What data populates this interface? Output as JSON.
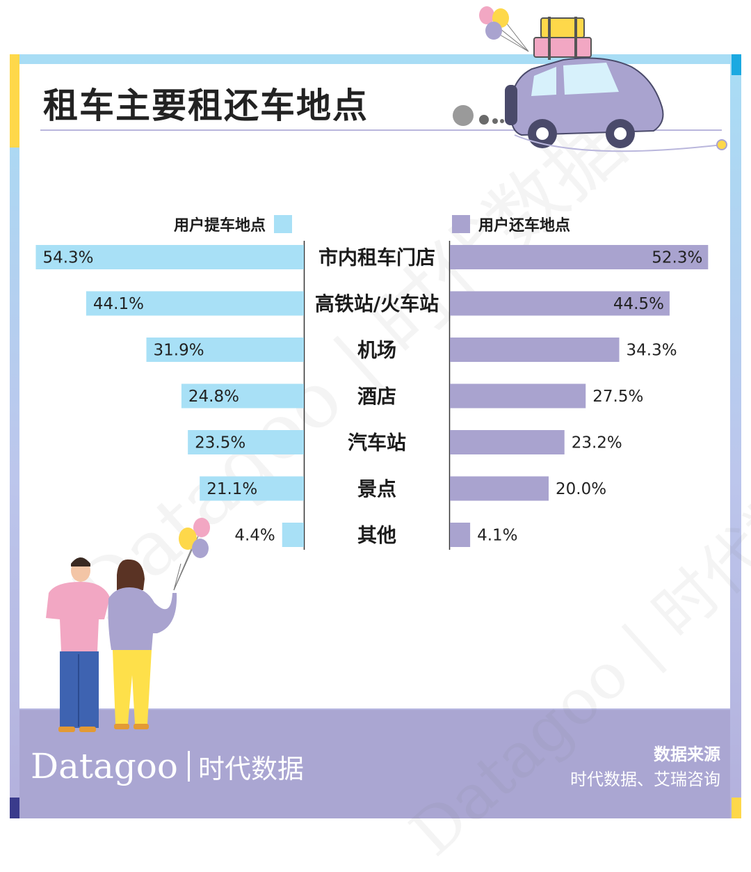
{
  "colors": {
    "pickup": "#a8e0f6",
    "return": "#a9a3cf",
    "frame_top": "#a8ddf5",
    "frame_bottom": "#b3b0dc",
    "footer": "#aaa6d2",
    "accent_yellow": "#fed84a",
    "accent_blue": "#1ba9e1",
    "accent_navy": "#3a3b8c"
  },
  "title": "租车主要租还车地点",
  "legend": {
    "left": "用户提车地点",
    "right": "用户还车地点"
  },
  "chart_data": {
    "type": "bar",
    "orientation": "horizontal-butterfly",
    "categories": [
      "市内租车门店",
      "高铁站/火车站",
      "机场",
      "酒店",
      "汽车站",
      "景点",
      "其他"
    ],
    "series": [
      {
        "name": "用户提车地点",
        "side": "left",
        "values": [
          54.3,
          44.1,
          31.9,
          24.8,
          23.5,
          21.1,
          4.4
        ]
      },
      {
        "name": "用户还车地点",
        "side": "right",
        "values": [
          52.3,
          44.5,
          34.3,
          27.5,
          23.2,
          20.0,
          4.1
        ]
      }
    ],
    "value_labels": {
      "left": [
        "54.3%",
        "44.1%",
        "31.9%",
        "24.8%",
        "23.5%",
        "21.1%",
        "4.4%"
      ],
      "right": [
        "52.3%",
        "44.5%",
        "34.3%",
        "27.5%",
        "23.2%",
        "20.0%",
        "4.1%"
      ]
    },
    "unit": "%",
    "grid": false,
    "legend_position": "top"
  },
  "watermark": {
    "text": "Datagoo | 时代数据"
  },
  "footer": {
    "brand_en": "Datagoo",
    "brand_cn": "时代数据",
    "source_title": "数据来源",
    "source_text": "时代数据、艾瑞咨询"
  }
}
